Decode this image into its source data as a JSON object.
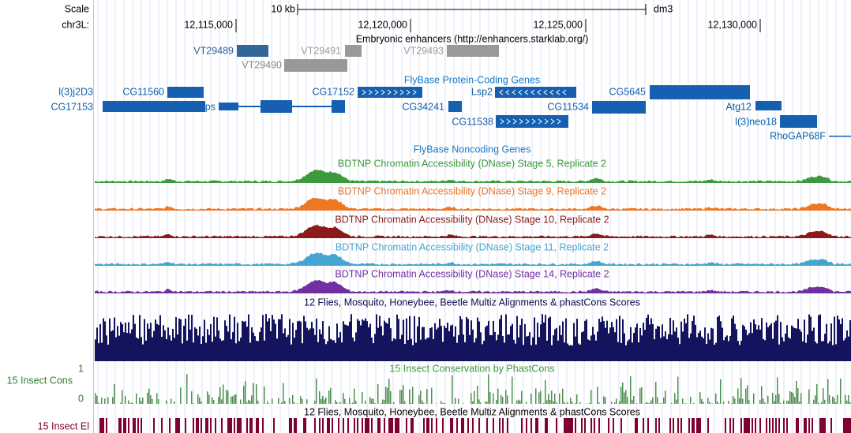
{
  "ruler": {
    "scale_label": "Scale",
    "scale_text": "10 kb",
    "assembly": "dm3",
    "chrom_label": "chr3L:",
    "positions": [
      "12,115,000",
      "12,120,000",
      "12,125,000",
      "12,130,000"
    ]
  },
  "enhancers": {
    "title": "Embryonic enhancers (http://enhancers.starklab.org/)",
    "items": [
      "VT29489",
      "VT29490",
      "VT29491",
      "VT29493"
    ]
  },
  "genes": {
    "title": "FlyBase Protein-Coding Genes",
    "labels": [
      "l(3)j2D3",
      "CG17153",
      "CG11560",
      "yps",
      "CG17152",
      "Lsp2",
      "CG34241",
      "CG11538",
      "CG11534",
      "CG5645",
      "Atg12",
      "l(3)neo18",
      "RhoGAP68F"
    ]
  },
  "noncoding": {
    "title": "FlyBase Noncoding Genes"
  },
  "dnase": {
    "titles": [
      "BDTNP Chromatin Accessibility (DNase) Stage 5, Replicate 2",
      "BDTNP Chromatin Accessibility (DNase) Stage 9, Replicate 2",
      "BDTNP Chromatin Accessibility (DNase) Stage 10, Replicate 2",
      "BDTNP Chromatin Accessibility (DNase) Stage 11, Replicate 2",
      "BDTNP Chromatin Accessibility (DNase) Stage 14, Replicate 2"
    ]
  },
  "multiz": {
    "title": "12 Flies, Mosquito, Honeybee, Beetle Multiz Alignments & phastCons Scores"
  },
  "conservation": {
    "label": "15 Insect Cons",
    "title": "15 Insect Conservation by PhastCons",
    "max_label": "1",
    "min_label": "0"
  },
  "elements": {
    "label": "15 Insect El",
    "title": "12 Flies, Mosquito, Honeybee, Beetle Multiz Alignments & phastCons Scores"
  }
}
